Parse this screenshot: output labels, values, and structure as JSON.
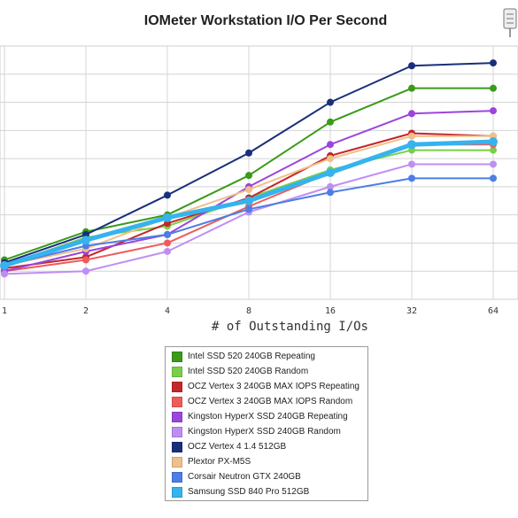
{
  "chart_data": {
    "type": "line",
    "title": "IOMeter Workstation I/O Per Second",
    "xlabel": "# of Outstanding I/Os",
    "ylabel": "",
    "categories": [
      "1",
      "2",
      "4",
      "8",
      "16",
      "32",
      "64"
    ],
    "y_scale": "linear",
    "ylim": [
      0,
      9
    ],
    "grid": true,
    "legend_position": "bottom-center",
    "series": [
      {
        "name": "Intel SSD 520 240GB Repeating",
        "color": "#3a9a19",
        "values": [
          1.4,
          2.4,
          3.0,
          4.4,
          6.3,
          7.5,
          7.5
        ]
      },
      {
        "name": "Intel SSD 520 240GB Random",
        "color": "#79cf4a",
        "values": [
          1.2,
          2.2,
          2.6,
          3.6,
          4.6,
          5.3,
          5.3
        ]
      },
      {
        "name": "OCZ Vertex 3 240GB MAX IOPS Repeating",
        "color": "#c4262a",
        "values": [
          1.1,
          1.5,
          2.7,
          3.6,
          5.1,
          5.9,
          5.8
        ]
      },
      {
        "name": "OCZ Vertex 3 240GB MAX IOPS Random",
        "color": "#ef5b5b",
        "values": [
          1.0,
          1.4,
          2.0,
          3.3,
          4.5,
          5.5,
          5.5
        ]
      },
      {
        "name": "Kingston HyperX SSD 240GB Repeating",
        "color": "#9b45dd",
        "values": [
          1.0,
          1.7,
          2.3,
          4.0,
          5.5,
          6.6,
          6.7
        ]
      },
      {
        "name": "Kingston HyperX SSD 240GB Random",
        "color": "#bf8ef3",
        "values": [
          0.9,
          1.0,
          1.7,
          3.1,
          4.0,
          4.8,
          4.8
        ]
      },
      {
        "name": "OCZ Vertex 4 1.4 512GB",
        "color": "#1a2f7a",
        "values": [
          1.3,
          2.3,
          3.7,
          5.2,
          7.0,
          8.3,
          8.4
        ]
      },
      {
        "name": "Plextor PX-M5S",
        "color": "#f0c08a",
        "values": [
          1.2,
          1.8,
          2.9,
          3.9,
          5.0,
          5.8,
          5.8
        ]
      },
      {
        "name": "Corsair Neutron GTX 240GB",
        "color": "#4d7de6",
        "values": [
          1.2,
          1.9,
          2.3,
          3.2,
          3.8,
          4.3,
          4.3
        ]
      },
      {
        "name": "Samsung SSD 840 Pro 512GB",
        "color": "#35b3ee",
        "values": [
          1.2,
          2.1,
          2.9,
          3.5,
          4.5,
          5.5,
          5.6
        ]
      }
    ]
  }
}
